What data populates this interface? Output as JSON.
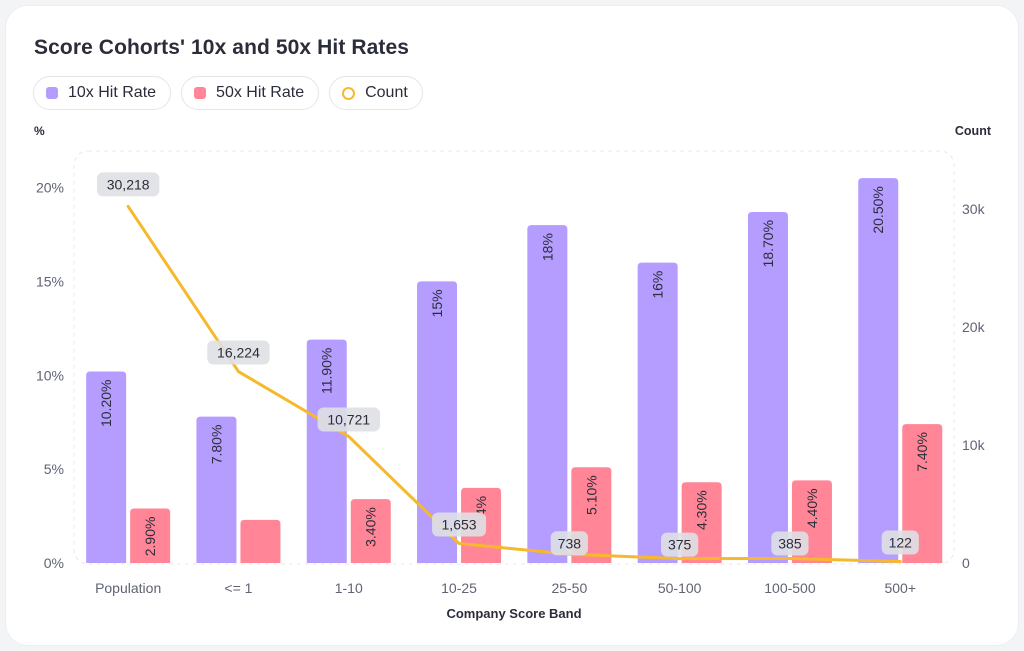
{
  "chart_data": {
    "type": "bar",
    "title": "Score Cohorts' 10x and 50x Hit Rates",
    "xlabel": "Company Score Band",
    "ylabel": "%",
    "ylabel_right": "Count",
    "categories": [
      "Population",
      "<= 1",
      "1-10",
      "10-25",
      "25-50",
      "50-100",
      "100-500",
      "500+"
    ],
    "ylim": [
      0,
      22
    ],
    "ylim_right": [
      0,
      35000
    ],
    "yticks": [
      "0%",
      "5%",
      "10%",
      "15%",
      "20%"
    ],
    "yticks_right": [
      "0",
      "10k",
      "20k",
      "30k"
    ],
    "series": [
      {
        "name": "10x Hit Rate",
        "kind": "bar",
        "color": "#b59cff",
        "values": [
          10.2,
          7.8,
          11.9,
          15,
          18,
          16,
          18.7,
          20.5
        ],
        "labels": [
          "10.20%",
          "7.80%",
          "11.90%",
          "15%",
          "18%",
          "16%",
          "18.70%",
          "20.50%"
        ]
      },
      {
        "name": "50x Hit Rate",
        "kind": "bar",
        "color": "#ff8597",
        "values": [
          2.9,
          2.3,
          3.4,
          4,
          5.1,
          4.3,
          4.4,
          7.4
        ],
        "labels": [
          "2.90%",
          "",
          "3.40%",
          "4%",
          "5.10%",
          "4.30%",
          "4.40%",
          "7.40%"
        ]
      },
      {
        "name": "Count",
        "kind": "line",
        "axis": "right",
        "color": "#f6b92b",
        "values": [
          30218,
          16224,
          10721,
          1653,
          738,
          375,
          385,
          122
        ],
        "labels": [
          "30,218",
          "16,224",
          "10,721",
          "1,653",
          "738",
          "375",
          "385",
          "122"
        ]
      }
    ]
  }
}
